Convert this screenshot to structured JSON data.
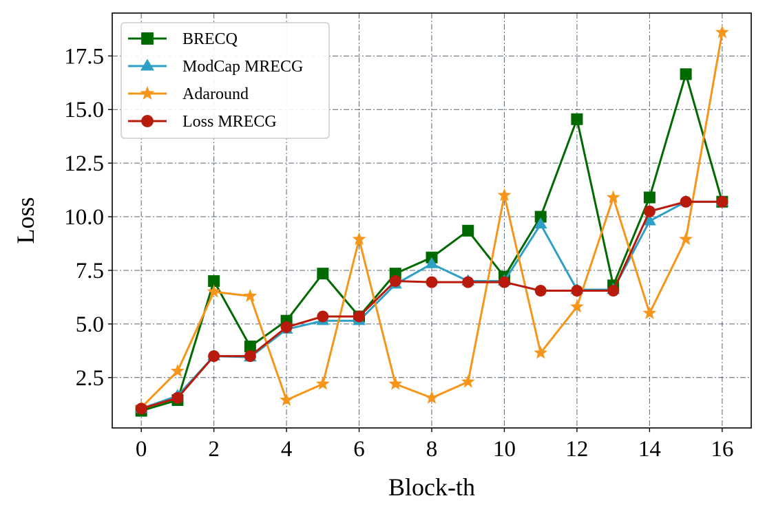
{
  "chart_data": {
    "type": "line",
    "title": "",
    "xlabel": "Block-th",
    "ylabel": "Loss",
    "xlim": [
      -0.8,
      16.8
    ],
    "ylim": [
      0.15,
      19.5
    ],
    "xticks": [
      0,
      2,
      4,
      6,
      8,
      10,
      12,
      14,
      16
    ],
    "yticks": [
      2.5,
      5.0,
      7.5,
      10.0,
      12.5,
      15.0,
      17.5
    ],
    "ytick_labels": [
      "2.5",
      "5.0",
      "7.5",
      "10.0",
      "12.5",
      "15.0",
      "17.5"
    ],
    "grid": true,
    "legend_position": "top-left",
    "x": [
      0,
      1,
      2,
      3,
      4,
      5,
      6,
      7,
      8,
      9,
      10,
      11,
      12,
      13,
      14,
      15,
      16
    ],
    "series": [
      {
        "name": "BRECQ",
        "color": "#006a00",
        "marker": "square",
        "values": [
          0.95,
          1.45,
          7.0,
          3.95,
          5.15,
          7.35,
          5.35,
          7.35,
          8.1,
          9.35,
          7.2,
          10.0,
          14.55,
          6.8,
          10.9,
          16.65,
          10.7
        ]
      },
      {
        "name": "ModCap MRECG",
        "color": "#2e9fc4",
        "marker": "triangle",
        "values": [
          1.05,
          1.65,
          3.5,
          3.45,
          4.75,
          5.15,
          5.15,
          6.85,
          7.8,
          7.0,
          7.0,
          9.65,
          6.6,
          6.6,
          9.8,
          10.7,
          10.7
        ]
      },
      {
        "name": "Adaround",
        "color": "#f5961b",
        "marker": "star",
        "values": [
          1.1,
          2.8,
          6.5,
          6.3,
          1.45,
          2.2,
          8.95,
          2.2,
          1.55,
          2.3,
          11.0,
          3.65,
          5.8,
          10.9,
          5.5,
          8.95,
          18.6
        ]
      },
      {
        "name": "Loss MRECG",
        "color": "#b81a0c",
        "marker": "circle",
        "values": [
          1.05,
          1.55,
          3.5,
          3.5,
          4.85,
          5.35,
          5.35,
          7.0,
          6.95,
          6.95,
          6.95,
          6.55,
          6.55,
          6.55,
          10.25,
          10.7,
          10.7
        ]
      }
    ]
  }
}
